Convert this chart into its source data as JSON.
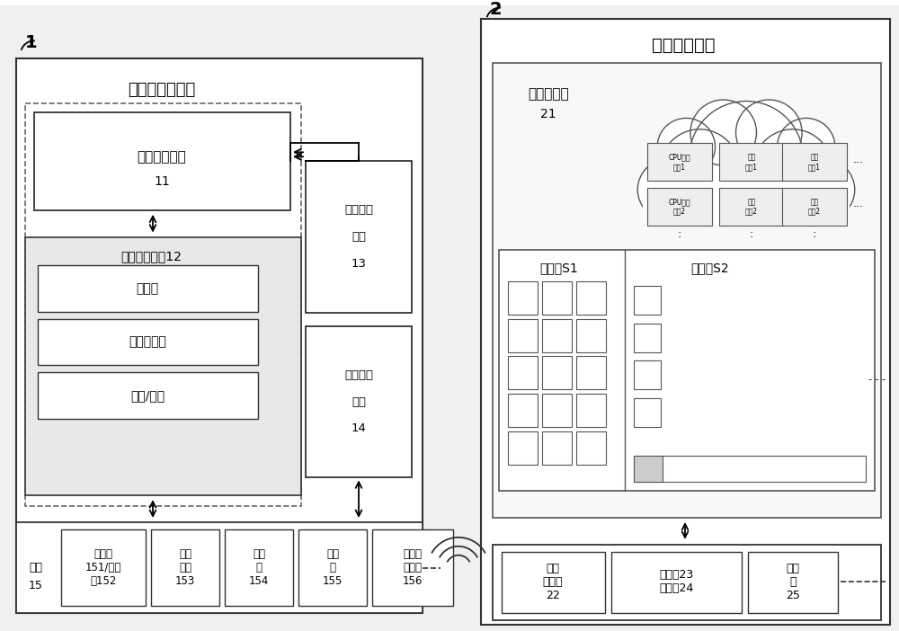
{
  "bg_color": "#ffffff",
  "title_left": "云计算移动终端",
  "title_right": "云计算服务器",
  "label1": "1",
  "label2": "2",
  "service_layer_line1": "云计算服务层",
  "service_layer_line2": "11",
  "base_arch": "基础系统架构12",
  "app_layer": "应用层",
  "sys_core": "系统核心库",
  "kernel": "内核/驱动",
  "trans_module_line1": "传输管理",
  "trans_module_line2": "模块",
  "trans_module_line3": "13",
  "res_module_line1": "资源调配",
  "res_module_line2": "模块",
  "res_module_line3": "14",
  "hw_label": "硬件\n件\n15",
  "hw1_l1": "触摸屏",
  "hw1_l2": "151/指纹",
  "hw1_l3": "器152",
  "hw2_l1": "微处",
  "hw2_l2": "理器",
  "hw2_l3": "153",
  "hw3_l1": "解码",
  "hw3_l2": "器",
  "hw3_l3": "154",
  "hw4_l1": "存储",
  "hw4_l2": "器",
  "hw4_l3": "155",
  "hw5_l1": "高速网",
  "hw5_l2": "络接口",
  "hw5_l3": "156",
  "cloud_arch_l1": "云集群架构",
  "cloud_arch_l2": "21",
  "cpu_res1_l1": "CPU运算",
  "cpu_res1_l2": "资源1",
  "mem_res1_l1": "内存",
  "mem_res1_l2": "资源1",
  "stor_res1_l1": "存储",
  "stor_res1_l2": "资源1",
  "cpu_res2_l1": "CPU运算",
  "cpu_res2_l2": "资源2",
  "mem_res2_l1": "内存",
  "mem_res2_l2": "资源2",
  "stor_res2_l1": "存储",
  "stor_res2_l2": "资源2",
  "cloud_s1": "云系统S1",
  "cloud_s2": "云系统S2",
  "net_mgr_l1": "网络",
  "net_mgr_l2": "管理器",
  "net_mgr_l3": "22",
  "proc_l1": "处理器23",
  "proc_l2": "调度器24",
  "stor_r_l1": "存储",
  "stor_r_l2": "器",
  "stor_r_l3": "25"
}
